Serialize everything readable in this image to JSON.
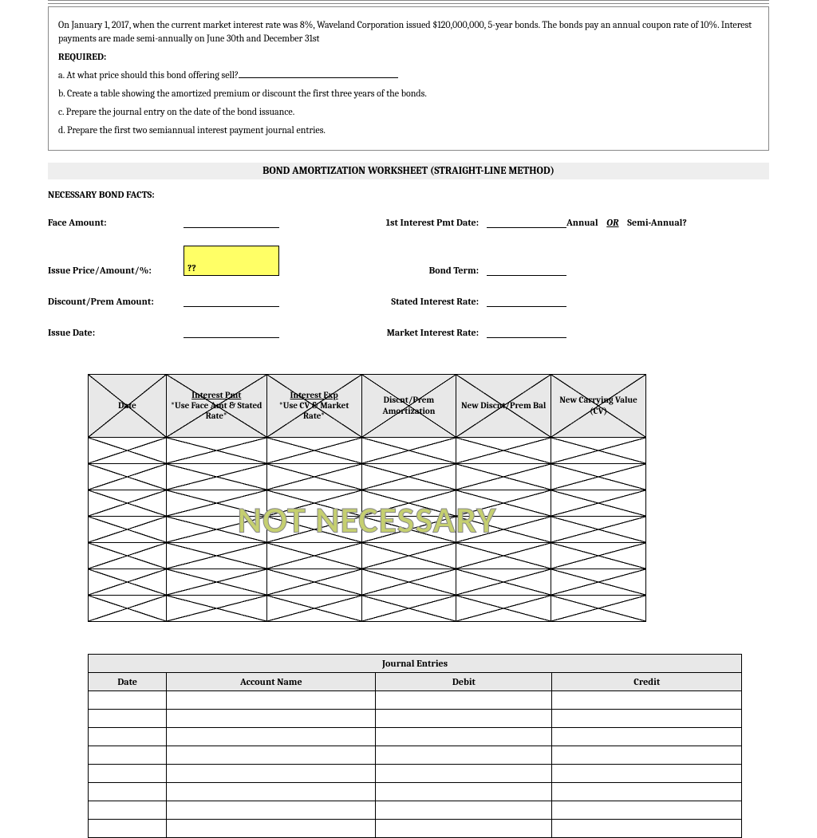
{
  "problem": {
    "intro": "On January 1, 2017, when the current market interest rate was 8%, Waveland Corporation issued $120,000,000, 5-year bonds.  The bonds pay an annual coupon rate of 10%.          Interest payments are made semi-annually on June 30th and December 31st",
    "required_label": "REQUIRED:",
    "a": "a.  At what price should this bond offering sell?",
    "b": "b.  Create a table showing the amortized premium or discount the first three years of the bonds.",
    "c": "c.   Prepare the journal entry on the date of the bond  issuance.",
    "d": "d.  Prepare the first two semiannual interest payment journal entries."
  },
  "worksheet_title": "BOND AMORTIZATION WORKSHEET (STRAIGHT-LINE METHOD)",
  "facts_title": "NECESSARY BOND FACTS:",
  "facts": {
    "face_amount": "Face Amount:",
    "issue_price": "Issue Price/Amount/%:",
    "issue_price_value": "??",
    "discount_prem": "Discount/Prem Amount:",
    "issue_date": "Issue Date:",
    "first_pmt": "1st Interest Pmt Date:",
    "bond_term": "Bond Term:",
    "stated_rate": "Stated Interest Rate:",
    "market_rate": "Market Interest Rate:",
    "annual": "Annual",
    "or": "OR",
    "semi": "Semi-Annual?"
  },
  "amort_headers": {
    "c1": "Date",
    "c2_u": "Interest Pmt",
    "c2_l": "*Use Face Amt & Stated Rate*",
    "c3_u": "Interest Exp",
    "c3_l": "*Use CV & Market Rate*",
    "c4": "Discnt/Prem Amortization",
    "c5": "New Discnt/Prem Bal",
    "c6": "New Carrying Value (CV)"
  },
  "amort_body_rows": 7,
  "overlay_text": "NOT NECESSARY",
  "journal": {
    "title": "Journal Entries",
    "cols": {
      "date": "Date",
      "account": "Account Name",
      "debit": "Debit",
      "credit": "Credit"
    },
    "blank_rows": 8
  },
  "style": {
    "highlight_color": "#ffff66",
    "header_bg": "#e8e8e8",
    "overlay_color": "#c5cf70",
    "font": "Cambria, Georgia, serif"
  }
}
